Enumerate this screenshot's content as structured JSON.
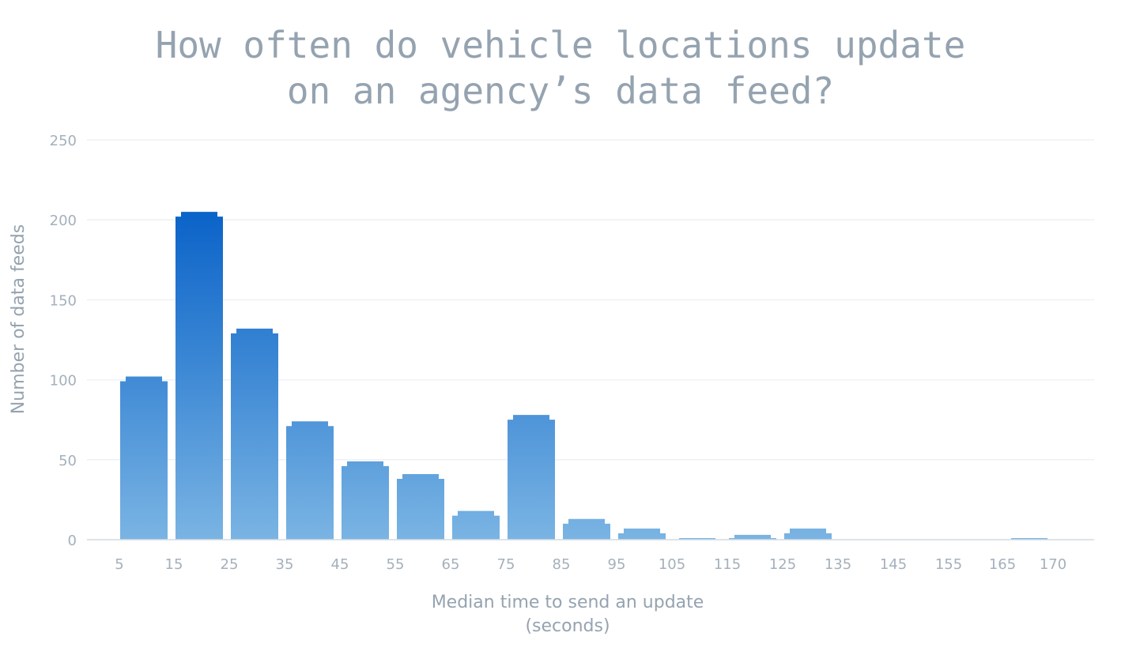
{
  "chart_data": {
    "type": "bar",
    "title_line1": "How often do vehicle locations update",
    "title_line2": "on an agency’s data feed?",
    "xlabel_line1": "Median time to send an update",
    "xlabel_line2": "(seconds)",
    "ylabel": "Number of data feeds",
    "ylim": [
      0,
      250
    ],
    "yticks": [
      "0",
      "50",
      "100",
      "150",
      "200",
      "250"
    ],
    "xticks": [
      "5",
      "15",
      "25",
      "35",
      "45",
      "55",
      "65",
      "75",
      "85",
      "95",
      "105",
      "115",
      "125",
      "135",
      "145",
      "155",
      "165",
      "170"
    ],
    "bin_width": 10,
    "bins": [
      {
        "start": 5,
        "value": 102
      },
      {
        "start": 15,
        "value": 205
      },
      {
        "start": 25,
        "value": 132
      },
      {
        "start": 35,
        "value": 74
      },
      {
        "start": 45,
        "value": 49
      },
      {
        "start": 55,
        "value": 41
      },
      {
        "start": 65,
        "value": 18
      },
      {
        "start": 75,
        "value": 78
      },
      {
        "start": 85,
        "value": 13
      },
      {
        "start": 95,
        "value": 7
      },
      {
        "start": 105,
        "value": 1
      },
      {
        "start": 115,
        "value": 3
      },
      {
        "start": 125,
        "value": 7
      },
      {
        "start": 135,
        "value": 0
      },
      {
        "start": 145,
        "value": 0
      },
      {
        "start": 155,
        "value": 0
      },
      {
        "start": 165,
        "value": 1
      }
    ],
    "grid": true,
    "colors": {
      "bar_top_dark": "#0b63c8",
      "bar_mid": "#3a86d4",
      "bar_bottom": "#7ab4e3",
      "grid": "#eef1f4",
      "axis": "#d4dbe1"
    }
  }
}
